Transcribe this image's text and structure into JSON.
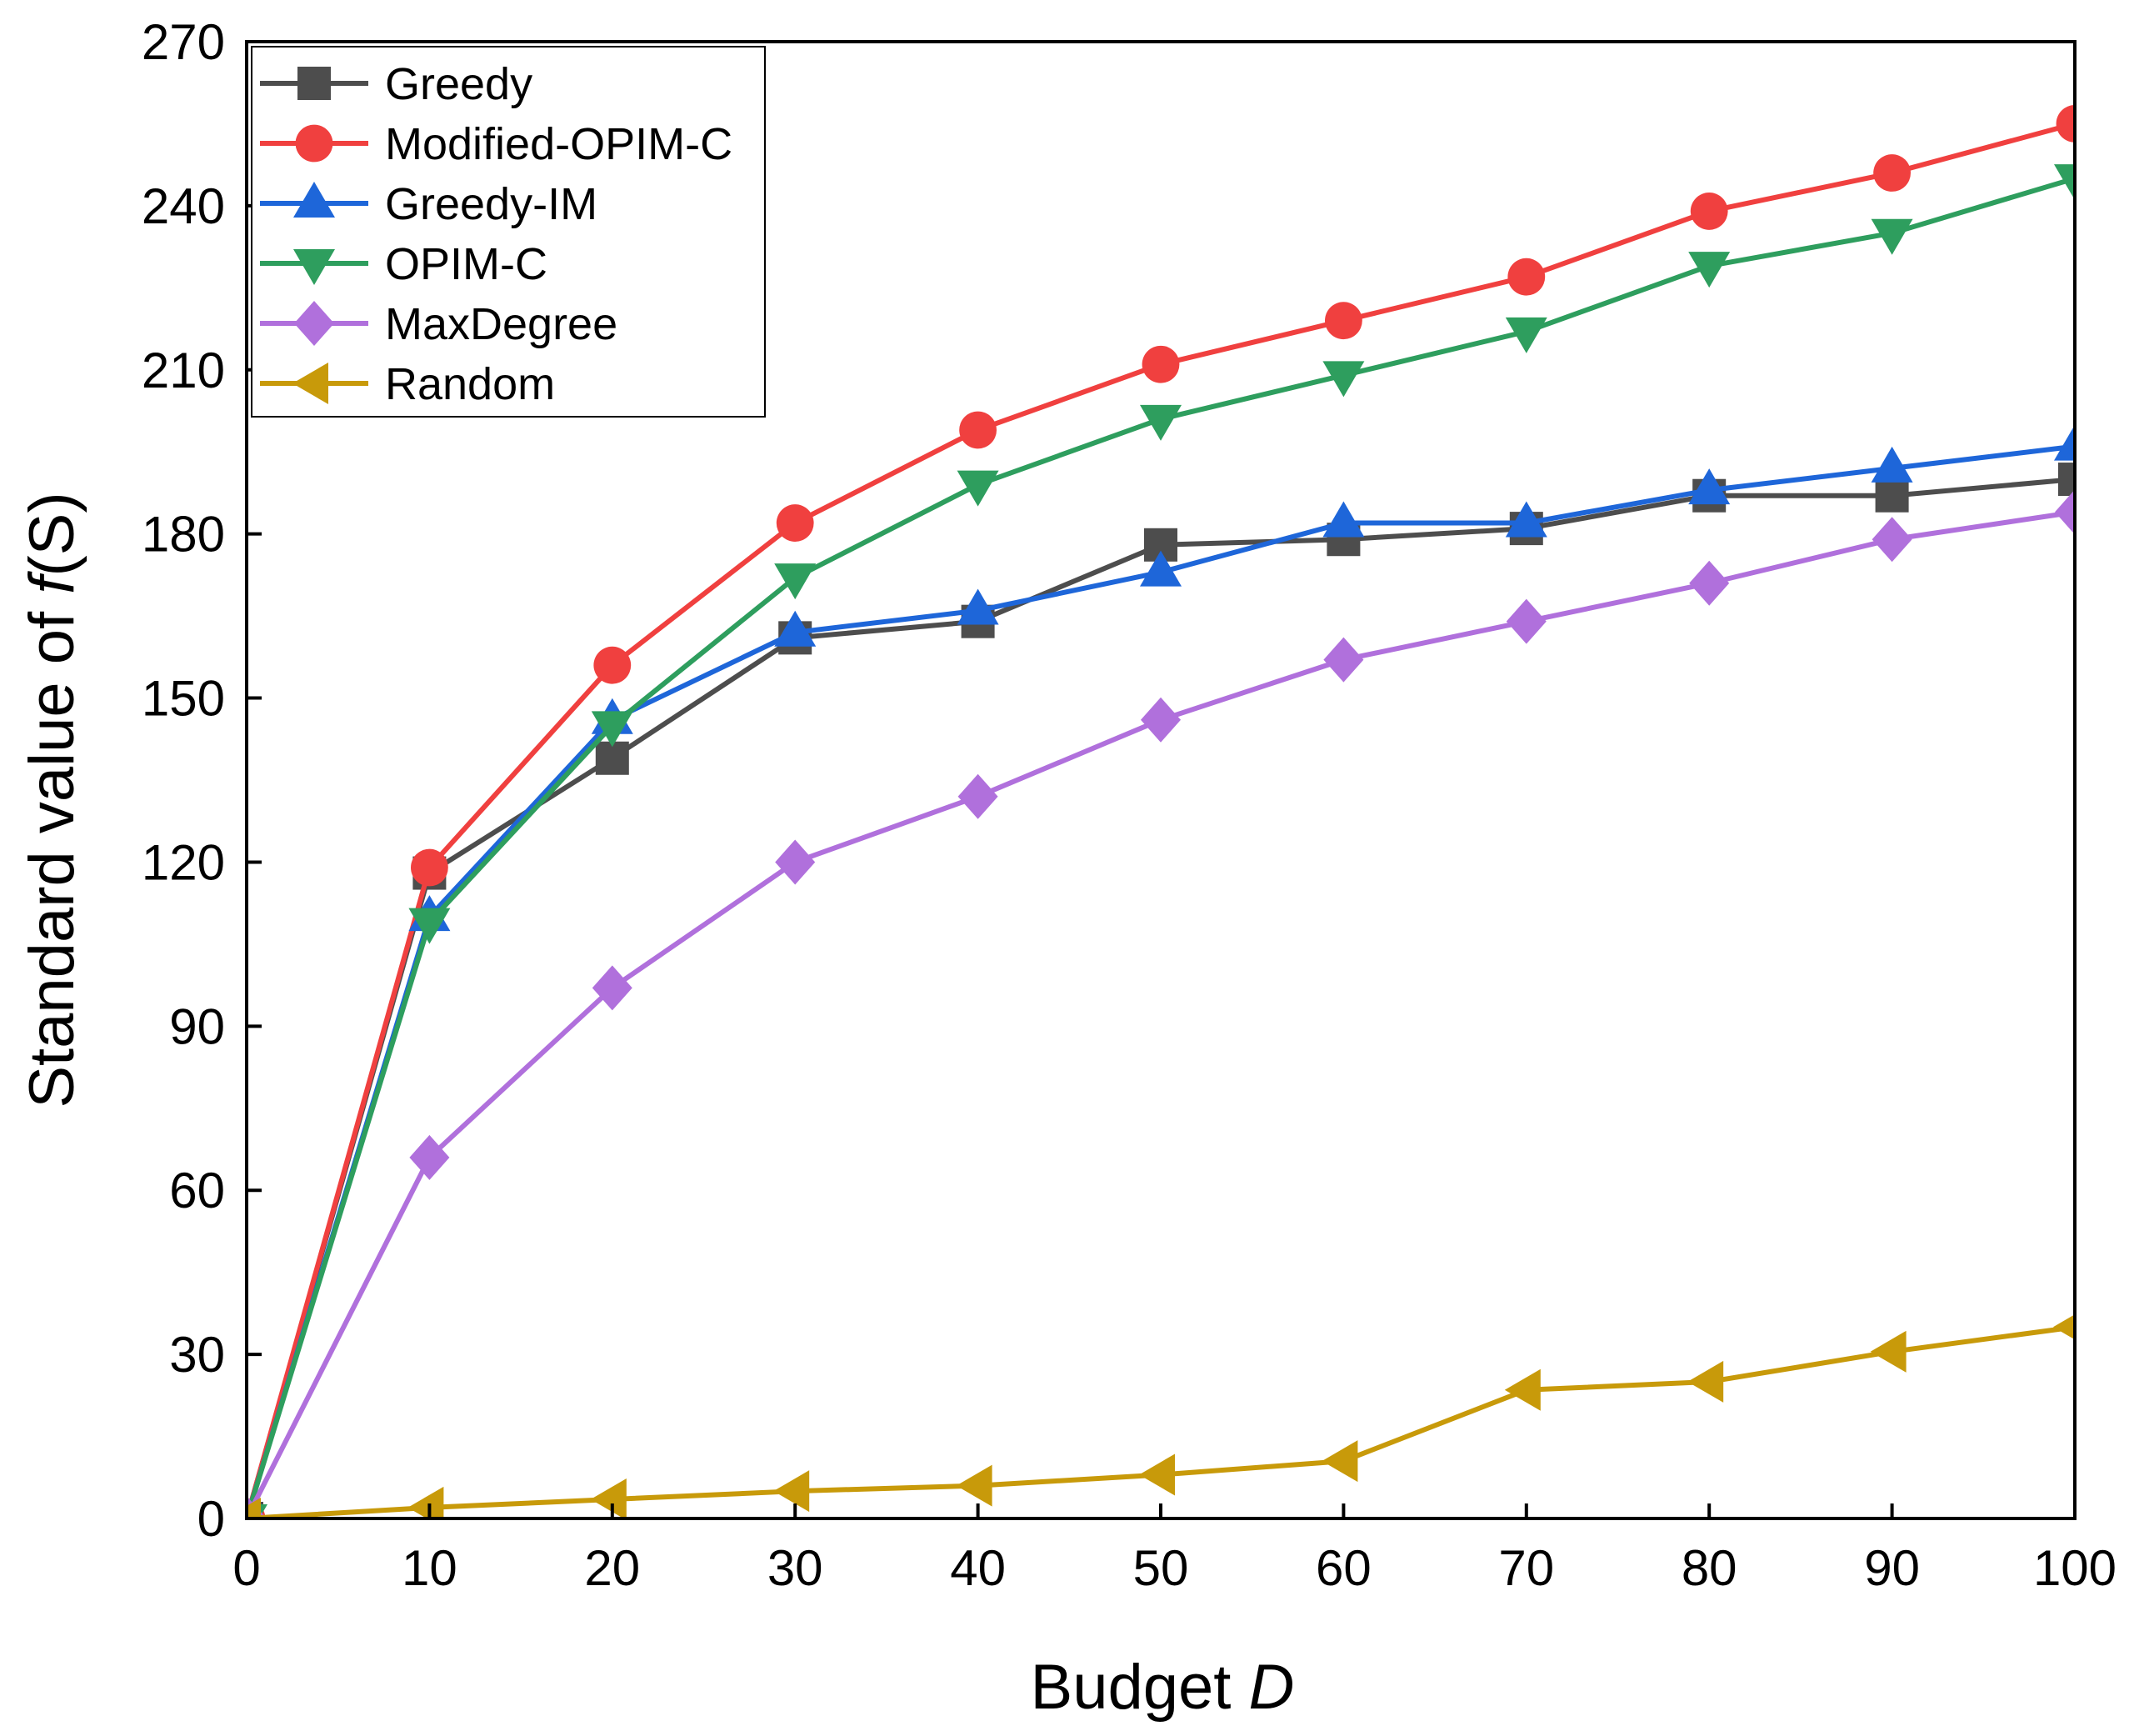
{
  "chart_data": {
    "type": "line",
    "title": "",
    "xlabel": {
      "prefix": "Budget ",
      "italic": "D",
      "suffix": ""
    },
    "ylabel": {
      "prefix": "Standard value of ",
      "italic": "f",
      "suffix": "(S)"
    },
    "xlim": [
      0,
      100
    ],
    "ylim": [
      0,
      270
    ],
    "xticks": [
      0,
      10,
      20,
      30,
      40,
      50,
      60,
      70,
      80,
      90,
      100
    ],
    "yticks": [
      0,
      30,
      60,
      90,
      120,
      150,
      180,
      210,
      240,
      270
    ],
    "grid": false,
    "legend_position": "top-left",
    "x": [
      0,
      10,
      20,
      30,
      40,
      50,
      60,
      70,
      80,
      90,
      100
    ],
    "series": [
      {
        "name": "Greedy",
        "color": "#4d4d4d",
        "marker": "square",
        "values": [
          0,
          118,
          139,
          161,
          164,
          178,
          179,
          181,
          187,
          187,
          190
        ]
      },
      {
        "name": "Modified-OPIM-C",
        "color": "#f0403f",
        "marker": "circle",
        "values": [
          0,
          119,
          156,
          182,
          199,
          211,
          219,
          227,
          239,
          246,
          255
        ]
      },
      {
        "name": "Greedy-IM",
        "color": "#1e66d9",
        "marker": "triangle-up",
        "values": [
          0,
          110,
          146,
          162,
          166,
          173,
          182,
          182,
          188,
          192,
          196
        ]
      },
      {
        "name": "OPIM-C",
        "color": "#2e9e5e",
        "marker": "triangle-down",
        "values": [
          0,
          109,
          145,
          172,
          189,
          201,
          209,
          217,
          229,
          235,
          245
        ]
      },
      {
        "name": "MaxDegree",
        "color": "#b070dc",
        "marker": "diamond",
        "values": [
          0,
          66,
          97,
          120,
          132,
          146,
          157,
          164,
          171,
          179,
          184
        ]
      },
      {
        "name": "Random",
        "color": "#c89a0a",
        "marker": "triangle-left",
        "values": [
          0,
          2,
          3.5,
          5,
          6,
          8,
          10.5,
          23.5,
          25,
          30.5,
          35
        ]
      }
    ]
  }
}
